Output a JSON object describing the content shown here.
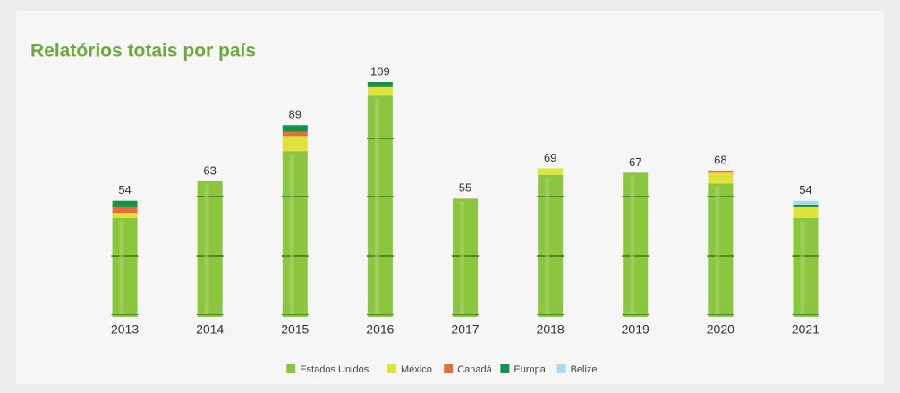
{
  "chart_data": {
    "type": "stacked_bar",
    "title": "Relatórios totais por país",
    "categories": [
      "2013",
      "2014",
      "2015",
      "2016",
      "2017",
      "2018",
      "2019",
      "2020",
      "2021"
    ],
    "series": [
      {
        "name": "Estados Unidos",
        "color": "#8cc63f",
        "values": [
          46,
          63,
          77,
          103,
          55,
          66,
          67,
          62,
          46
        ]
      },
      {
        "name": "México",
        "color": "#dde33a",
        "values": [
          2,
          0,
          7,
          4,
          0,
          3,
          0,
          5,
          5
        ]
      },
      {
        "name": "Canadá",
        "color": "#e0703a",
        "values": [
          3,
          0,
          2,
          0,
          0,
          0,
          0,
          1,
          0
        ]
      },
      {
        "name": "Europa",
        "color": "#12934a",
        "values": [
          3,
          0,
          3,
          2,
          0,
          0,
          0,
          0,
          1
        ]
      },
      {
        "name": "Belize",
        "color": "#a8dcea",
        "values": [
          0,
          0,
          0,
          0,
          0,
          0,
          0,
          0,
          2
        ]
      }
    ],
    "totals": [
      54,
      63,
      89,
      109,
      55,
      69,
      67,
      68,
      54
    ]
  }
}
